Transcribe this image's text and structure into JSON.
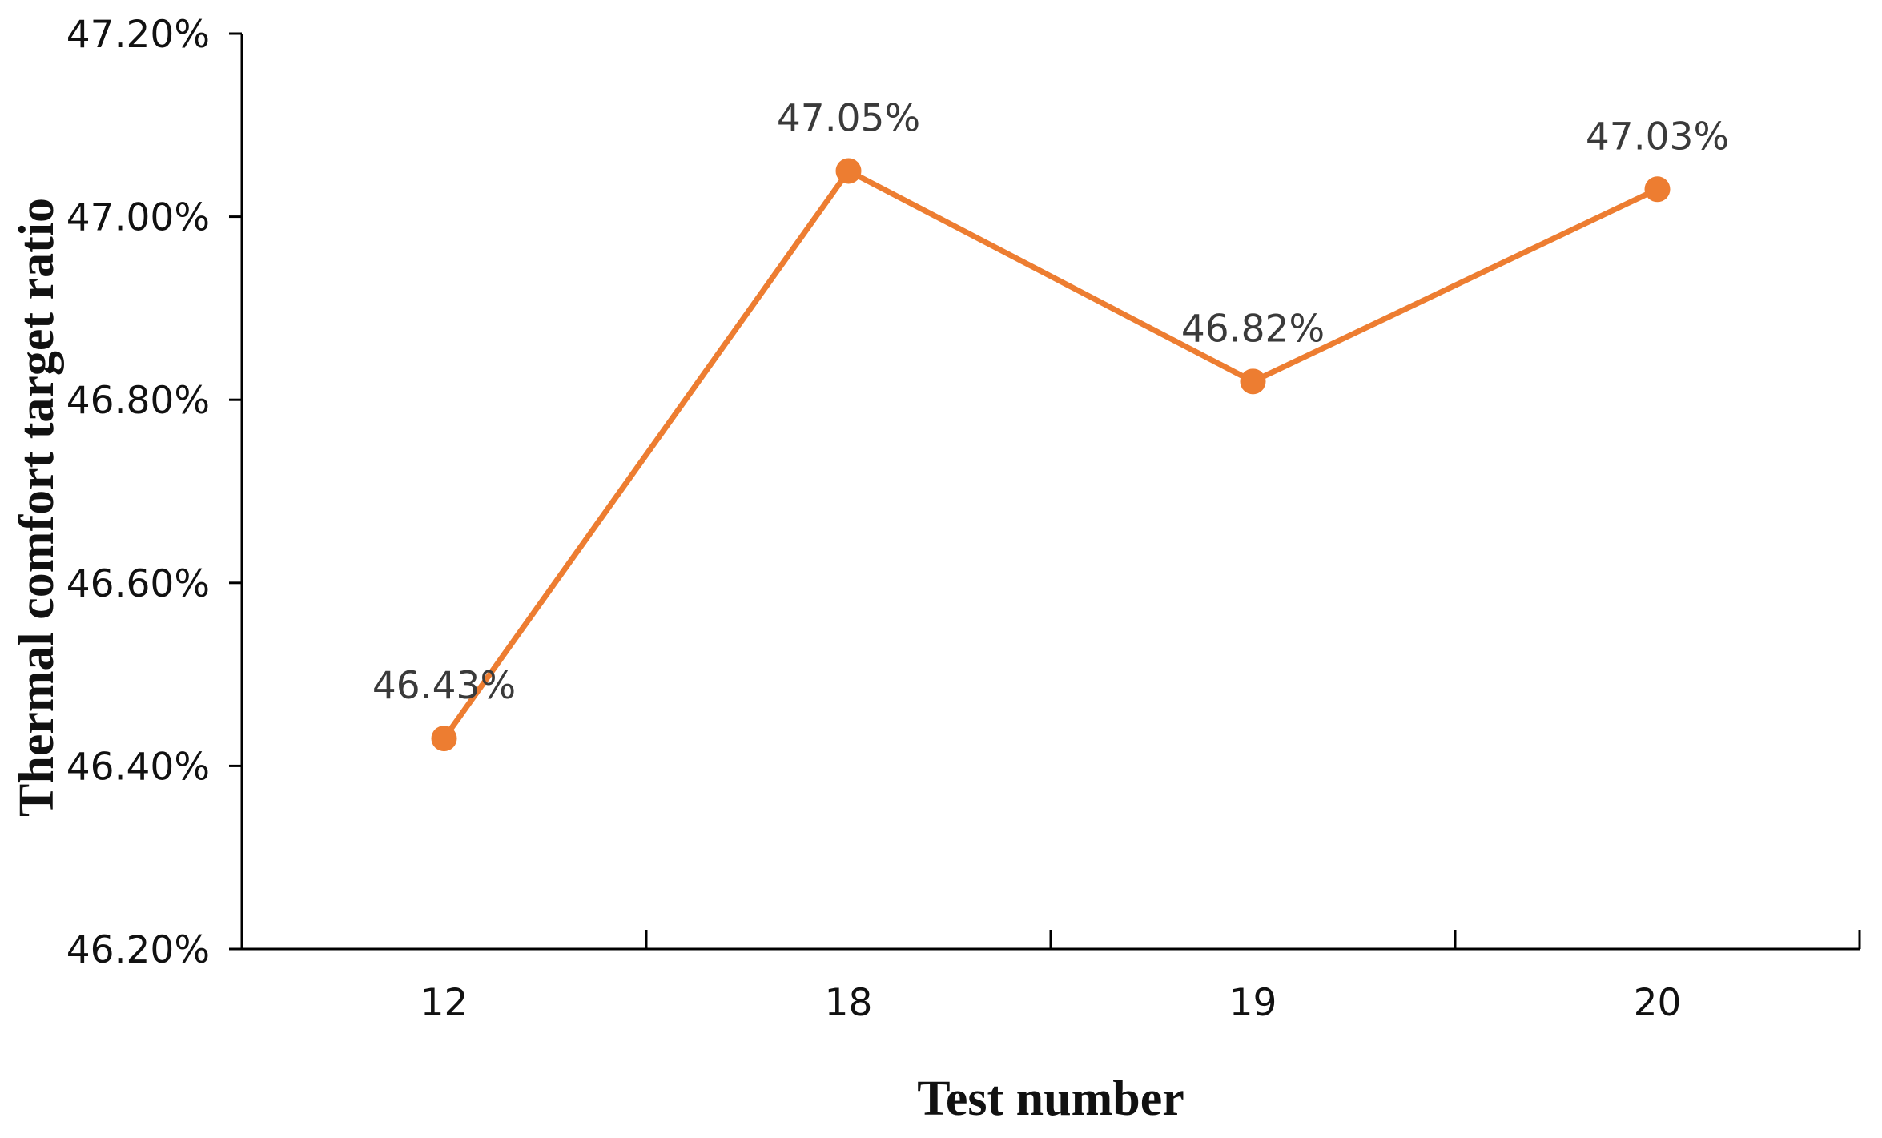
{
  "chart_data": {
    "type": "line",
    "title": "",
    "xlabel": "Test number",
    "ylabel": "Thermal comfort target ratio",
    "categories": [
      "12",
      "18",
      "19",
      "20"
    ],
    "series": [
      {
        "values": [
          46.43,
          47.05,
          46.82,
          47.03
        ],
        "data_labels": [
          "46.43%",
          "47.05%",
          "46.82%",
          "47.03%"
        ],
        "color": "#ED7D31"
      }
    ],
    "ylim": [
      46.2,
      47.2
    ],
    "yticks": [
      46.2,
      46.4,
      46.6,
      46.8,
      47.0,
      47.2
    ],
    "ytick_labels": [
      "46.20%",
      "46.40%",
      "46.60%",
      "46.80%",
      "47.00%",
      "47.20%"
    ],
    "grid": false,
    "legend": "none",
    "axis_color": "#000000"
  }
}
